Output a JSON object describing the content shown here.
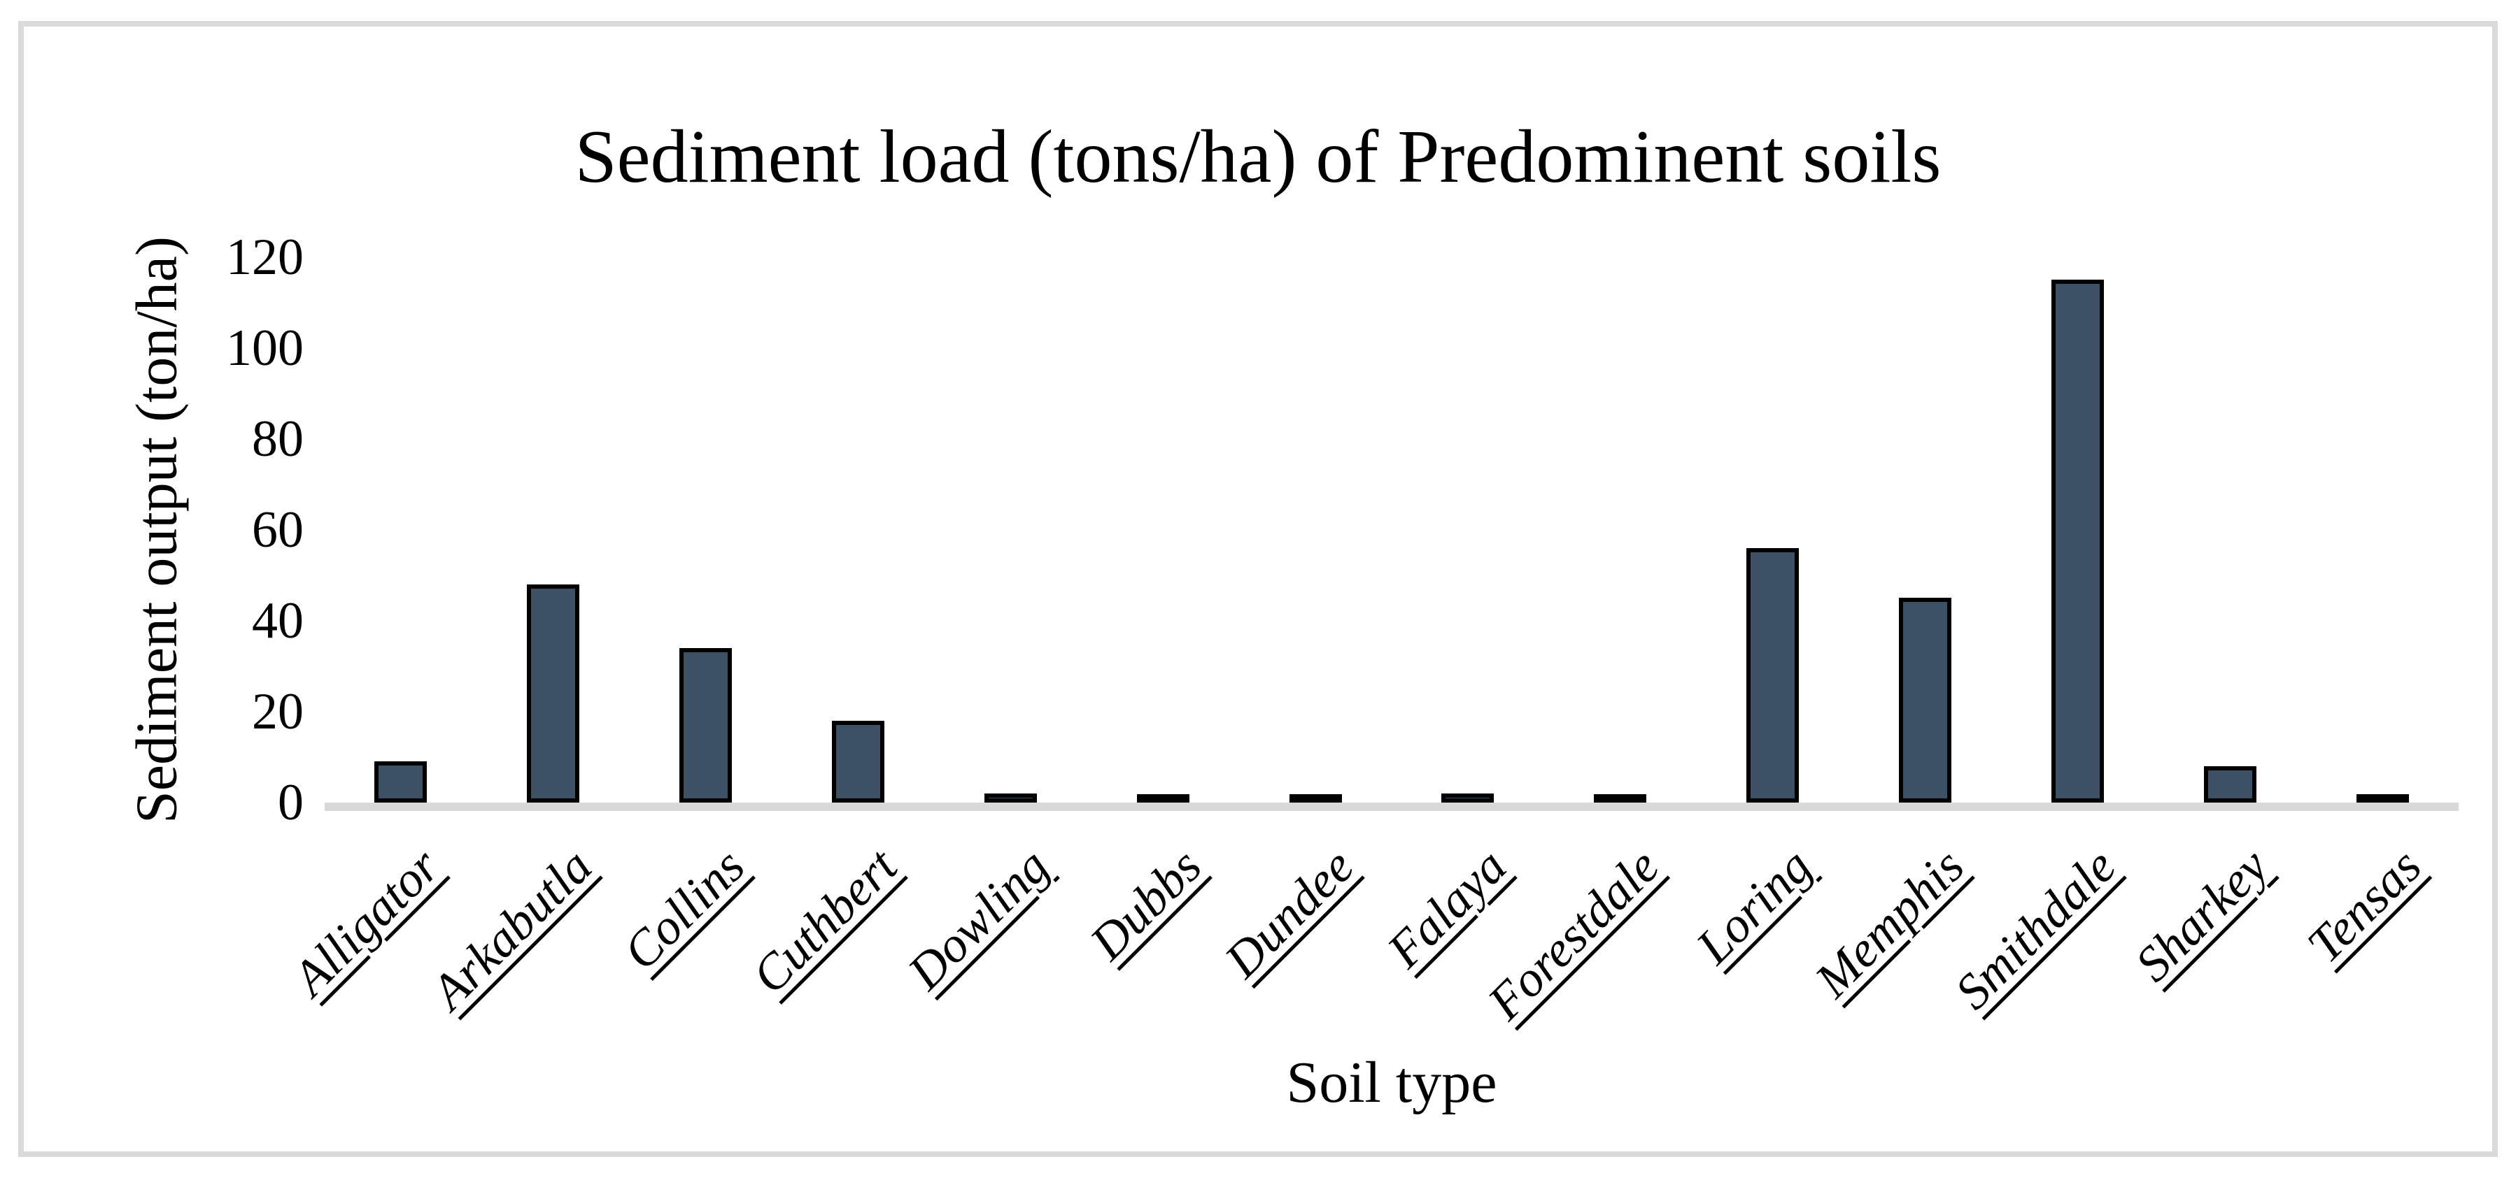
{
  "chart_data": {
    "type": "bar",
    "title": "Sediment load (tons/ha) of Predominent soils",
    "xlabel": "Soil type",
    "ylabel": "Sediment output (ton/ha)",
    "categories": [
      "Alligator",
      "Arkabutla",
      "Collins",
      "Cuthbert",
      "Dowling",
      "Dubbs",
      "Dundee",
      "Falaya",
      "Forestdale",
      "Loring",
      "Memphis",
      "Smithdale",
      "Sharkey",
      "Tensas"
    ],
    "values": [
      9,
      48,
      34,
      18,
      2,
      0.6,
      1.2,
      2,
      1.5,
      56,
      45,
      115,
      8,
      0.7
    ],
    "ylim": [
      0,
      120
    ],
    "yticks": [
      0,
      20,
      40,
      60,
      80,
      100,
      120
    ],
    "grid": "off",
    "legend": "none",
    "bar_fill_color": "#3D5064",
    "bar_border_color": "#000000",
    "axis_line_color": "#D9D9D9",
    "frame_border_color": "#DADADA",
    "text_color": "#000000"
  }
}
